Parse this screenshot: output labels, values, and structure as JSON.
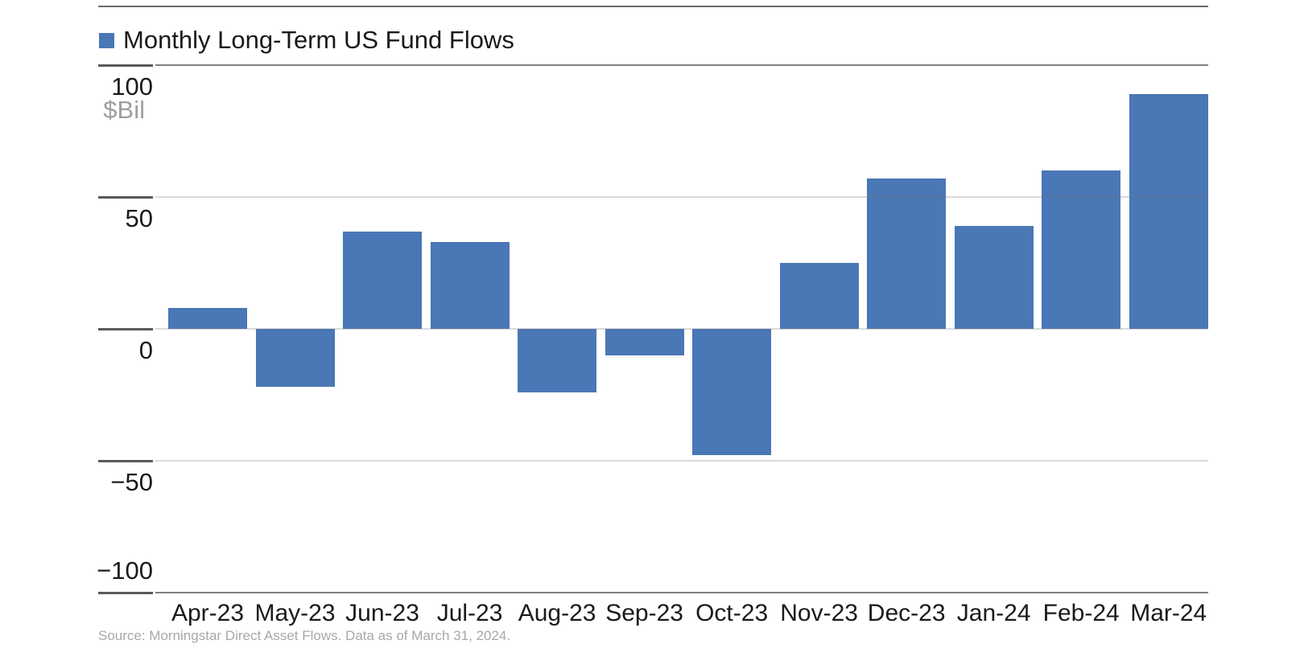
{
  "legend": {
    "label": "Monthly Long-Term US Fund Flows",
    "swatch_color": "#4a77b5"
  },
  "y_axis": {
    "unit_label": "$Bil",
    "ticks": [
      100,
      50,
      0,
      -50,
      -100
    ]
  },
  "source": {
    "text": "Source: Morningstar Direct Asset Flows. Data as of March 31, 2024."
  },
  "chart_data": {
    "type": "bar",
    "title": "Monthly Long-Term US Fund Flows",
    "categories": [
      "Apr-23",
      "May-23",
      "Jun-23",
      "Jul-23",
      "Aug-23",
      "Sep-23",
      "Oct-23",
      "Nov-23",
      "Dec-23",
      "Jan-24",
      "Feb-24",
      "Mar-24"
    ],
    "values": [
      8,
      -22,
      37,
      33,
      -24,
      -10,
      -48,
      25,
      57,
      39,
      60,
      89
    ],
    "xlabel": "",
    "ylabel": "$Bil",
    "ylim": [
      -100,
      100
    ],
    "yticks": [
      100,
      50,
      0,
      -50,
      -100
    ],
    "bar_color": "#4a77b5",
    "grid": "horizontal-light-inner-dark-edges",
    "legend_position": "top-left"
  }
}
